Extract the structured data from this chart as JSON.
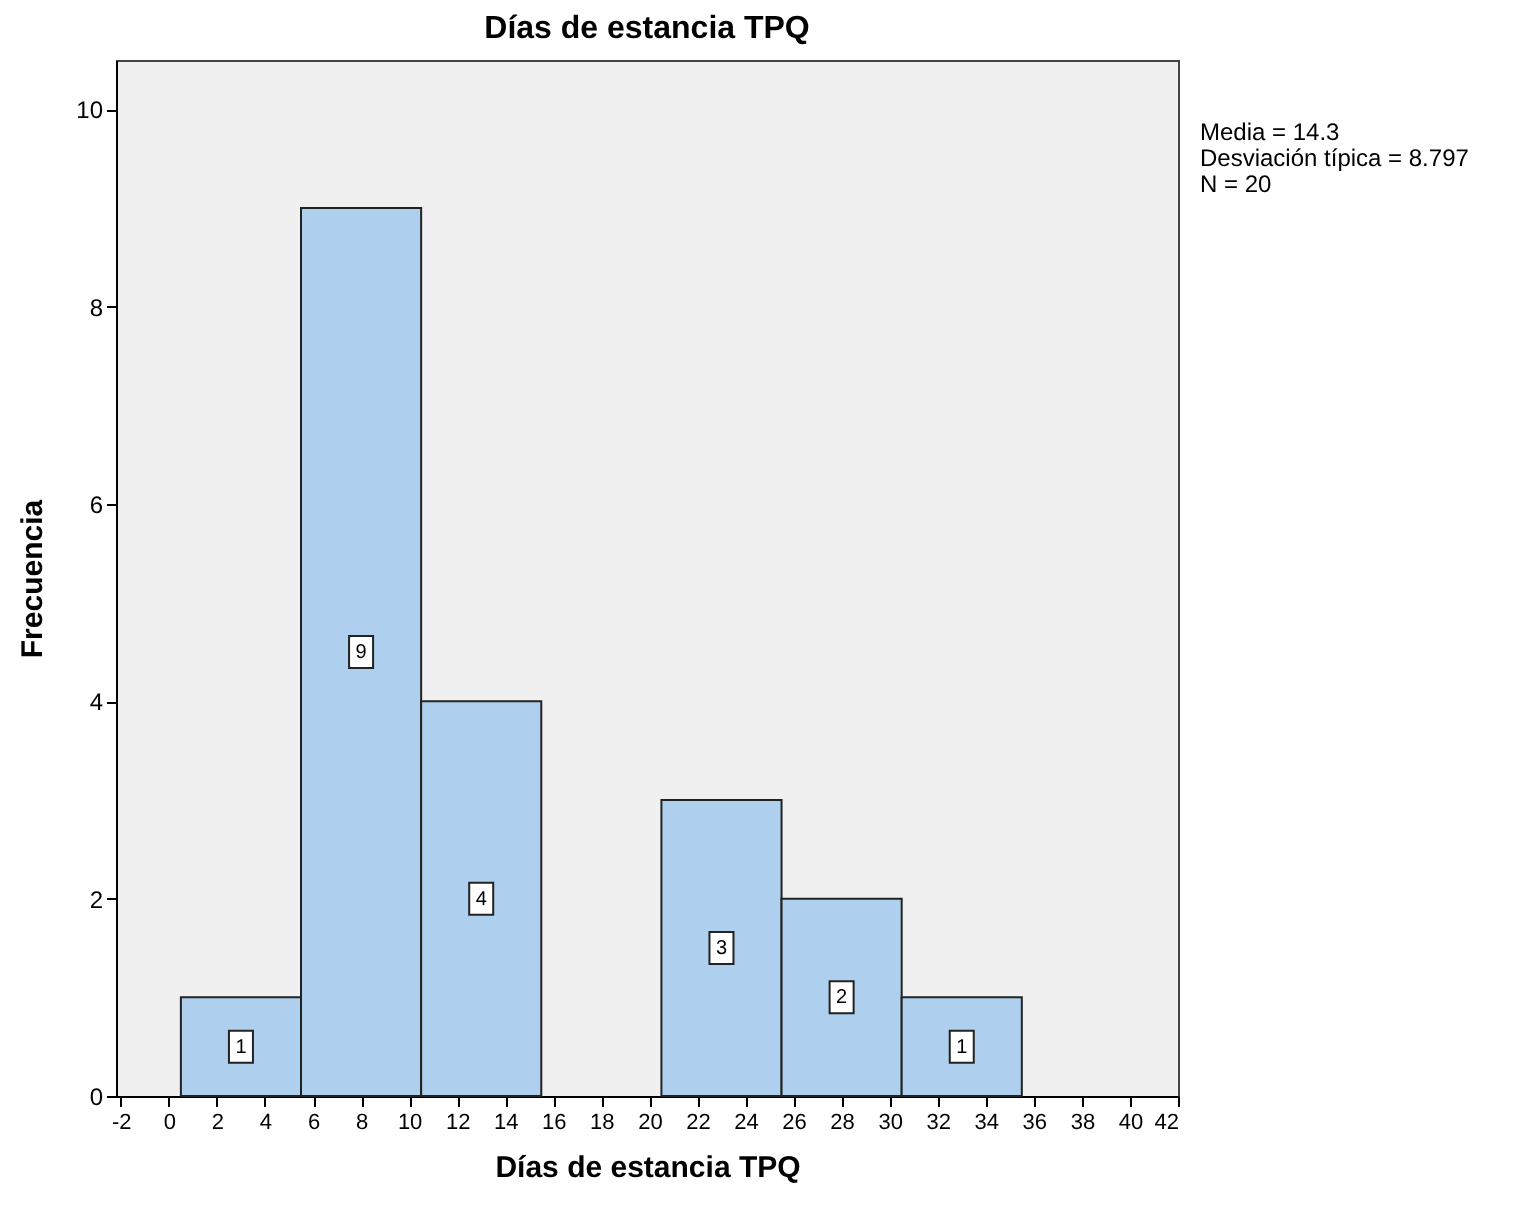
{
  "chart_data": {
    "type": "histogram",
    "title": "Días de estancia TPQ",
    "xlabel": "Días de estancia TPQ",
    "ylabel": "Frecuencia",
    "bins": [
      0.5,
      5.5,
      10.5,
      15.5,
      20.5,
      25.5,
      30.5,
      35.5
    ],
    "values": [
      1,
      9,
      4,
      0,
      3,
      2,
      1
    ],
    "value_labels": [
      "1",
      "9",
      "4",
      null,
      "3",
      "2",
      "1"
    ],
    "color": "#aed0ee",
    "xlim": [
      -2.2,
      42
    ],
    "xticks": [
      -2,
      0,
      2,
      4,
      6,
      8,
      10,
      12,
      14,
      16,
      18,
      20,
      22,
      24,
      26,
      28,
      30,
      32,
      34,
      36,
      38,
      40,
      42
    ],
    "ylim": [
      0,
      10.5
    ],
    "yticks": [
      0,
      2,
      4,
      6,
      8,
      10
    ],
    "grid": false,
    "annotations": [
      "Media = 14.3",
      "Desviación típica = 8.797",
      "N = 20"
    ]
  }
}
